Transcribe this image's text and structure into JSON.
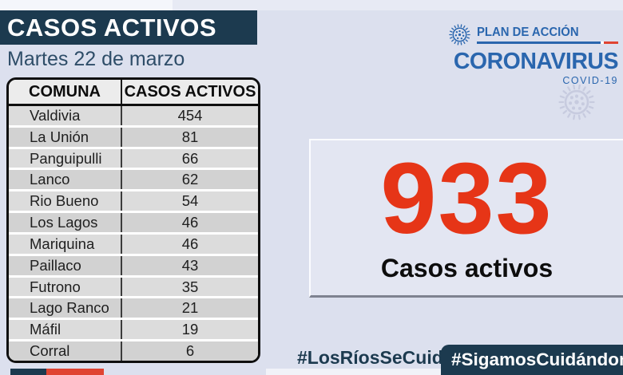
{
  "banner": {
    "title": "CASOS ACTIVOS"
  },
  "date": "Martes 22 de marzo",
  "logo": {
    "plan": "PLAN DE ACCIÓN",
    "brand": "CORONAVIRUS",
    "sub": "COVID-19"
  },
  "table": {
    "headers": [
      "COMUNA",
      "CASOS ACTIVOS"
    ],
    "rows": [
      [
        "Valdivia",
        454
      ],
      [
        "La Unión",
        81
      ],
      [
        "Panguipulli",
        66
      ],
      [
        "Lanco",
        62
      ],
      [
        "Rio Bueno",
        54
      ],
      [
        "Los Lagos",
        46
      ],
      [
        "Mariquina",
        46
      ],
      [
        "Paillaco",
        43
      ],
      [
        "Futrono",
        35
      ],
      [
        "Lago Ranco",
        21
      ],
      [
        "Máfil",
        19
      ],
      [
        "Corral",
        6
      ]
    ]
  },
  "summary": {
    "value": "933",
    "label": "Casos activos"
  },
  "hashtags": {
    "left": "#LosRíosSeCuida",
    "right": "#SigamosCuidándonos"
  },
  "icons": [
    "virus-icon",
    "virus-watermark-icon"
  ],
  "colors": {
    "bg": "#dce0ee",
    "panel_bg": "#e3e6f2",
    "navy": "#1c3a4f",
    "date_text": "#2e4d68",
    "brand_blue": "#2a66ae",
    "accent_red": "#e63517",
    "flag_red": "#e04432",
    "watermark": "#c7cbdf",
    "row_light": "#dcdcdc",
    "row_dark": "#d2d2d2",
    "header_bg": "#ececec",
    "divider_gray": "#7e8290"
  },
  "chart_data": {
    "type": "table",
    "title": "CASOS ACTIVOS",
    "subtitle": "Martes 22 de marzo",
    "columns": [
      "COMUNA",
      "CASOS ACTIVOS"
    ],
    "rows": [
      {
        "comuna": "Valdivia",
        "casos_activos": 454
      },
      {
        "comuna": "La Unión",
        "casos_activos": 81
      },
      {
        "comuna": "Panguipulli",
        "casos_activos": 66
      },
      {
        "comuna": "Lanco",
        "casos_activos": 62
      },
      {
        "comuna": "Rio Bueno",
        "casos_activos": 54
      },
      {
        "comuna": "Los Lagos",
        "casos_activos": 46
      },
      {
        "comuna": "Mariquina",
        "casos_activos": 46
      },
      {
        "comuna": "Paillaco",
        "casos_activos": 43
      },
      {
        "comuna": "Futrono",
        "casos_activos": 35
      },
      {
        "comuna": "Lago Ranco",
        "casos_activos": 21
      },
      {
        "comuna": "Máfil",
        "casos_activos": 19
      },
      {
        "comuna": "Corral",
        "casos_activos": 6
      }
    ],
    "total": 933,
    "total_label": "Casos activos"
  }
}
